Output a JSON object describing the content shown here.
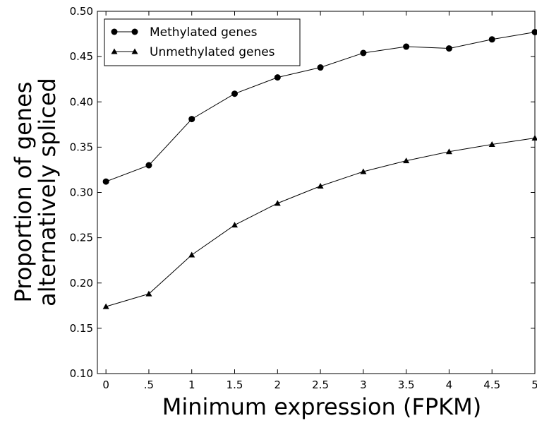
{
  "chart_data": {
    "type": "line",
    "title": "",
    "xlabel": "Minimum expression (FPKM)",
    "ylabel": [
      "Proportion of genes",
      "alternatively spliced"
    ],
    "x": [
      0,
      0.5,
      1,
      1.5,
      2,
      2.5,
      3,
      3.5,
      4,
      4.5,
      5
    ],
    "x_tick_values": [
      0,
      0.5,
      1,
      1.5,
      2,
      2.5,
      3,
      3.5,
      4,
      4.5,
      5
    ],
    "x_tick_labels": [
      "0",
      ".5",
      "1",
      "1.5",
      "2",
      "2.5",
      "3",
      "3.5",
      "4",
      "4.5",
      "5"
    ],
    "y_tick_values": [
      0.1,
      0.15,
      0.2,
      0.25,
      0.3,
      0.35,
      0.4,
      0.45,
      0.5
    ],
    "y_tick_labels": [
      "0.10",
      "0.15",
      "0.20",
      "0.25",
      "0.30",
      "0.35",
      "0.40",
      "0.45",
      "0.50"
    ],
    "xlim": [
      -0.1,
      5
    ],
    "ylim": [
      0.1,
      0.5
    ],
    "grid": false,
    "legend_position": "top-left",
    "series": [
      {
        "name": "Methylated genes",
        "marker": "circle",
        "color": "#000000",
        "values": [
          0.312,
          0.33,
          0.381,
          0.409,
          0.427,
          0.438,
          0.454,
          0.461,
          0.459,
          0.469,
          0.477
        ]
      },
      {
        "name": "Unmethylated genes",
        "marker": "triangle",
        "color": "#000000",
        "values": [
          0.174,
          0.188,
          0.231,
          0.264,
          0.288,
          0.307,
          0.323,
          0.335,
          0.345,
          0.353,
          0.36
        ]
      }
    ]
  }
}
